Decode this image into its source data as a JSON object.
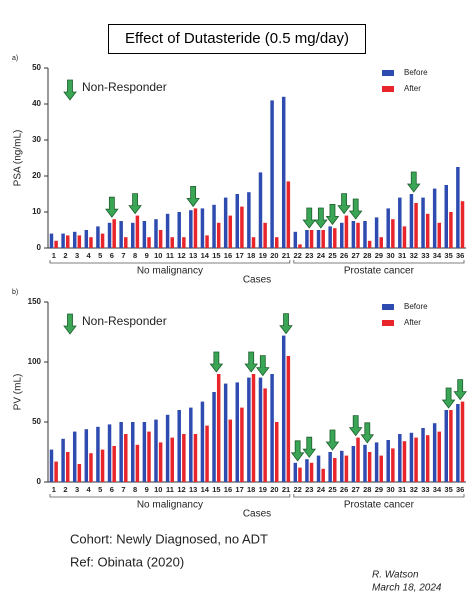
{
  "title": "Effect of Dutasteride (0.5 mg/day)",
  "chart_data": [
    {
      "type": "bar",
      "panel_label": "a)",
      "ylabel": "PSA (ng/mL)",
      "xlabel": "Cases",
      "annotation": "Non-Responder",
      "legend": "top-right",
      "categories": [
        "1",
        "2",
        "3",
        "4",
        "5",
        "6",
        "7",
        "8",
        "9",
        "10",
        "11",
        "12",
        "13",
        "14",
        "15",
        "16",
        "17",
        "18",
        "19",
        "20",
        "21",
        "22",
        "23",
        "24",
        "25",
        "26",
        "27",
        "28",
        "29",
        "30",
        "31",
        "32",
        "33",
        "34",
        "35",
        "36"
      ],
      "series": [
        {
          "name": "Before",
          "color": "#2e4bb0",
          "values": [
            4,
            4,
            4.5,
            5,
            6,
            7,
            7.5,
            7,
            7.5,
            8,
            9.5,
            10,
            10.5,
            11,
            12,
            14,
            15,
            15.5,
            21,
            41,
            42,
            4.5,
            5,
            5,
            6,
            7,
            7.5,
            7.5,
            8.5,
            11,
            14,
            15,
            14,
            16.5,
            17.5,
            22.5
          ]
        },
        {
          "name": "After",
          "color": "#e8252b",
          "values": [
            2,
            3.5,
            3.5,
            3,
            4,
            8,
            3,
            9,
            3,
            5,
            3,
            3,
            11,
            3.5,
            7,
            9,
            11.5,
            3,
            7,
            3,
            18.5,
            1,
            5,
            5,
            5.5,
            9,
            7,
            2,
            3,
            8,
            6,
            12.5,
            9.5,
            7,
            10,
            13
          ]
        }
      ],
      "non_responders": [
        "6",
        "8",
        "13",
        "23",
        "24",
        "25",
        "26",
        "27",
        "32"
      ],
      "groups": [
        {
          "name": "No malignancy",
          "span": 21
        },
        {
          "name": "Prostate cancer",
          "span": 15
        }
      ],
      "ylim": [
        0,
        50
      ],
      "yticks": [
        0,
        10,
        20,
        30,
        40,
        50
      ]
    },
    {
      "type": "bar",
      "panel_label": "b)",
      "ylabel": "PV (mL)",
      "xlabel": "Cases",
      "annotation": "Non-Responder",
      "legend": "top-right",
      "categories": [
        "1",
        "2",
        "3",
        "4",
        "5",
        "6",
        "7",
        "8",
        "9",
        "10",
        "11",
        "12",
        "13",
        "14",
        "15",
        "16",
        "17",
        "18",
        "19",
        "20",
        "21",
        "22",
        "23",
        "24",
        "25",
        "26",
        "27",
        "28",
        "29",
        "30",
        "31",
        "32",
        "33",
        "34",
        "35",
        "36"
      ],
      "series": [
        {
          "name": "Before",
          "color": "#2e4bb0",
          "values": [
            27,
            36,
            42,
            44,
            46,
            48,
            50,
            50,
            50,
            52,
            56,
            60,
            62,
            67,
            75,
            82,
            83,
            87,
            87,
            90,
            122,
            16,
            19,
            22,
            25,
            26,
            30,
            31,
            33,
            35,
            40,
            41,
            45,
            49,
            60,
            65
          ]
        },
        {
          "name": "After",
          "color": "#e8252b",
          "values": [
            17,
            25,
            15,
            24,
            27,
            30,
            40,
            31,
            42,
            33,
            37,
            40,
            40,
            47,
            90,
            52,
            62,
            90,
            78,
            50,
            105,
            12,
            16,
            11,
            20,
            22,
            37,
            25,
            22,
            28,
            34,
            37,
            39,
            42,
            60,
            67
          ]
        }
      ],
      "non_responders": [
        "15",
        "18",
        "19",
        "21",
        "22",
        "23",
        "25",
        "27",
        "28",
        "35",
        "36"
      ],
      "groups": [
        {
          "name": "No malignancy",
          "span": 21
        },
        {
          "name": "Prostate cancer",
          "span": 15
        }
      ],
      "ylim": [
        0,
        150
      ],
      "yticks": [
        0,
        50,
        100,
        150
      ]
    }
  ],
  "notes": {
    "cohort": "Cohort:  Newly Diagnosed, no ADT",
    "ref": "Ref: Obinata (2020)",
    "author": "R. Watson",
    "date": "March 18, 2024"
  }
}
